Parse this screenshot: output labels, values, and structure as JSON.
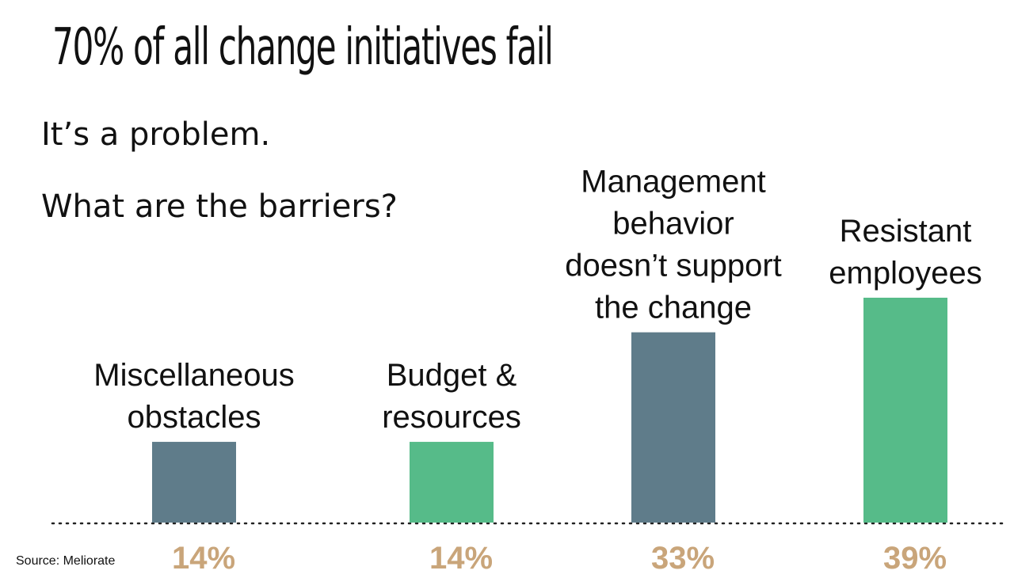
{
  "title": "70% of all change initiatives fail",
  "subtitle_lines": [
    "It’s a problem.",
    "What are the barriers?"
  ],
  "source": "Source: Meliorate",
  "colors": {
    "dark_bar": "#5f7c8a",
    "green_bar": "#56bb89",
    "value_label": "#c9a57a",
    "baseline": "#222222"
  },
  "chart_data": {
    "type": "bar",
    "categories": [
      "Miscellaneous obstacles",
      "Budget & resources",
      "Management behavior doesn’t support the change",
      "Resistant employees"
    ],
    "category_lines": [
      [
        "Miscellaneous",
        "obstacles"
      ],
      [
        "Budget &",
        "resources"
      ],
      [
        "Management",
        "behavior",
        "doesn’t support",
        "the change"
      ],
      [
        "Resistant",
        "employees"
      ]
    ],
    "values": [
      14,
      14,
      33,
      39
    ],
    "value_labels": [
      "14%",
      "14%",
      "33%",
      "39%"
    ],
    "bar_colors": [
      "#5f7c8a",
      "#56bb89",
      "#5f7c8a",
      "#56bb89"
    ],
    "xlabel": "",
    "ylabel": "",
    "ylim": [
      0,
      42
    ],
    "grid": false,
    "legend": "none",
    "baseline": "dotted"
  }
}
